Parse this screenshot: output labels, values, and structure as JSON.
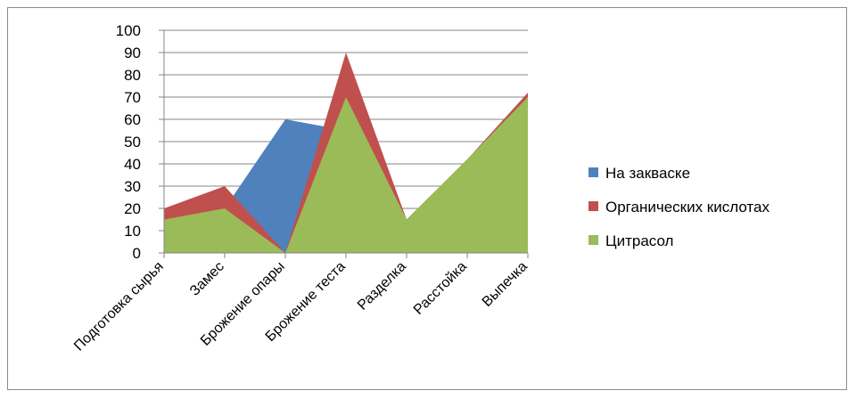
{
  "chart_data": {
    "type": "area",
    "categories": [
      "Подготовка сырья",
      "Замес",
      "Брожение опары",
      "Брожение теста",
      "Разделка",
      "Расстойка",
      "Выпечка"
    ],
    "series": [
      {
        "name": "На закваске",
        "color": "#4F81BD",
        "values": [
          15,
          20,
          60,
          55,
          15,
          42,
          70
        ]
      },
      {
        "name": "Органических кислотах",
        "color": "#C0504D",
        "values": [
          20,
          30,
          0,
          90,
          15,
          42,
          72
        ]
      },
      {
        "name": "Цитрасол",
        "color": "#9BBB59",
        "values": [
          15,
          20,
          0,
          70,
          15,
          42,
          70
        ]
      }
    ],
    "yticks": [
      "0",
      "10",
      "20",
      "30",
      "40",
      "50",
      "60",
      "70",
      "80",
      "90",
      "100"
    ],
    "ylim": [
      0,
      100
    ],
    "grid": true,
    "legend_position": "right"
  }
}
